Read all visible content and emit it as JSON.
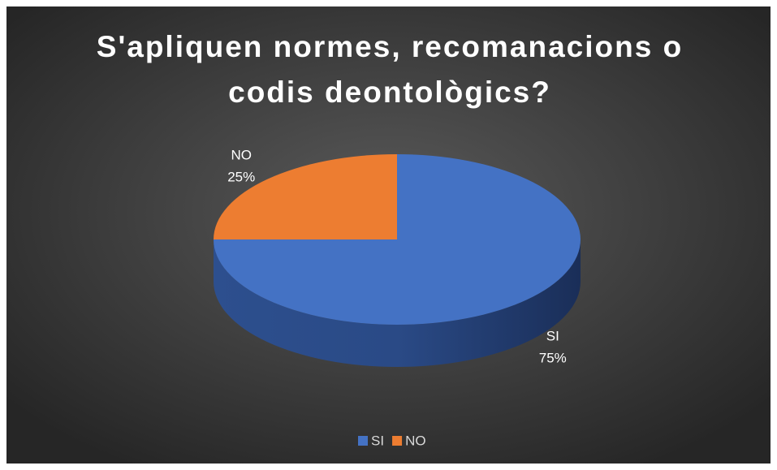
{
  "chart_data": {
    "type": "pie",
    "title": "S'apliquen normes, recomanacions o codis deontològics?",
    "categories": [
      "SI",
      "NO"
    ],
    "values": [
      75,
      25
    ],
    "value_labels": [
      "75%",
      "25%"
    ],
    "colors": [
      "#4472c4",
      "#ed7d31"
    ],
    "legend": "bottom",
    "three_d": true
  }
}
